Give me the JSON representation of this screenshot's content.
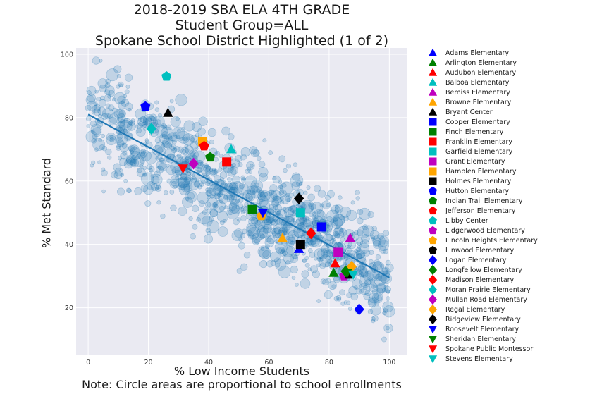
{
  "title_lines": [
    "2018-2019 SBA ELA 4TH GRADE",
    "Student Group=ALL",
    "Spokane School District Highlighted (1 of 2)"
  ],
  "xlabel": "% Low Income Students",
  "note": "Note: Circle areas are proportional to school enrollments",
  "ylabel": "% Met Standard",
  "chart_data": {
    "type": "scatter",
    "title": "2018-2019 SBA ELA 4TH GRADE / Student Group=ALL / Spokane School District Highlighted (1 of 2)",
    "xlabel": "% Low Income Students",
    "ylabel": "% Met Standard",
    "xlim": [
      -4,
      106
    ],
    "ylim": [
      5,
      102
    ],
    "xticks": [
      0,
      20,
      40,
      60,
      80,
      100
    ],
    "yticks": [
      20,
      40,
      60,
      80,
      100
    ],
    "grid": true,
    "legend_position": "right-outside",
    "trend_line": {
      "x": [
        0,
        100
      ],
      "y": [
        81,
        29.5
      ],
      "color": "#1f77b4"
    },
    "background_color": "#1f77b4",
    "highlighted_schools": [
      {
        "name": "Adams Elementary",
        "x": 70,
        "y": 38.5,
        "marker": "triangle-up",
        "color": "#0000ff"
      },
      {
        "name": "Arlington Elementary",
        "x": 81.5,
        "y": 31,
        "marker": "triangle-up",
        "color": "#008000"
      },
      {
        "name": "Audubon Elementary",
        "x": 82,
        "y": 34,
        "marker": "triangle-up",
        "color": "#ff0000"
      },
      {
        "name": "Balboa Elementary",
        "x": 47.5,
        "y": 70,
        "marker": "triangle-up",
        "color": "#00bfbf"
      },
      {
        "name": "Bemiss Elementary",
        "x": 87,
        "y": 42,
        "marker": "triangle-up",
        "color": "#bf00bf"
      },
      {
        "name": "Browne Elementary",
        "x": 64.5,
        "y": 42,
        "marker": "triangle-up",
        "color": "#ffa500"
      },
      {
        "name": "Bryant Center",
        "x": 26.5,
        "y": 81.5,
        "marker": "triangle-up",
        "color": "#000000"
      },
      {
        "name": "Cooper Elementary",
        "x": 77.5,
        "y": 45.5,
        "marker": "square",
        "color": "#0000ff"
      },
      {
        "name": "Finch Elementary",
        "x": 54.5,
        "y": 51,
        "marker": "square",
        "color": "#008000"
      },
      {
        "name": "Franklin Elementary",
        "x": 46,
        "y": 66,
        "marker": "square",
        "color": "#ff0000"
      },
      {
        "name": "Garfield Elementary",
        "x": 70.5,
        "y": 50,
        "marker": "square",
        "color": "#00bfbf"
      },
      {
        "name": "Grant Elementary",
        "x": 83,
        "y": 37.5,
        "marker": "square",
        "color": "#bf00bf"
      },
      {
        "name": "Hamblen Elementary",
        "x": 38,
        "y": 72.5,
        "marker": "square",
        "color": "#ffa500"
      },
      {
        "name": "Holmes Elementary",
        "x": 70.5,
        "y": 40,
        "marker": "square",
        "color": "#000000"
      },
      {
        "name": "Hutton Elementary",
        "x": 19,
        "y": 83.5,
        "marker": "pentagon",
        "color": "#0000ff"
      },
      {
        "name": "Indian Trail Elementary",
        "x": 40.5,
        "y": 67.5,
        "marker": "pentagon",
        "color": "#008000"
      },
      {
        "name": "Jefferson Elementary",
        "x": 38.5,
        "y": 71,
        "marker": "pentagon",
        "color": "#ff0000"
      },
      {
        "name": "Libby Center",
        "x": 26,
        "y": 93,
        "marker": "pentagon",
        "color": "#00bfbf"
      },
      {
        "name": "Lidgerwood Elementary",
        "x": 85,
        "y": 30,
        "marker": "pentagon",
        "color": "#bf00bf"
      },
      {
        "name": "Lincoln Heights Elementary",
        "x": 57.5,
        "y": 49,
        "marker": "pentagon",
        "color": "#ffa500"
      },
      {
        "name": "Linwood Elementary",
        "x": 86.5,
        "y": 30.5,
        "marker": "pentagon",
        "color": "#000000"
      },
      {
        "name": "Logan Elementary",
        "x": 90,
        "y": 19.5,
        "marker": "diamond",
        "color": "#0000ff"
      },
      {
        "name": "Longfellow Elementary",
        "x": 85.5,
        "y": 31.5,
        "marker": "diamond",
        "color": "#008000"
      },
      {
        "name": "Madison Elementary",
        "x": 74,
        "y": 43.5,
        "marker": "diamond",
        "color": "#ff0000"
      },
      {
        "name": "Moran Prairie Elementary",
        "x": 21,
        "y": 76.5,
        "marker": "diamond",
        "color": "#00bfbf"
      },
      {
        "name": "Mullan Road Elementary",
        "x": 35,
        "y": 65.5,
        "marker": "diamond",
        "color": "#bf00bf"
      },
      {
        "name": "Regal Elementary",
        "x": 87.5,
        "y": 33,
        "marker": "diamond",
        "color": "#ffa500"
      },
      {
        "name": "Ridgeview Elementary",
        "x": 70,
        "y": 54.5,
        "marker": "diamond",
        "color": "#000000"
      },
      {
        "name": "Roosevelt Elementary",
        "x": 58,
        "y": 50,
        "marker": "triangle-down",
        "color": "#0000ff"
      },
      {
        "name": "Sheridan Elementary",
        "x": 86,
        "y": 31,
        "marker": "triangle-down",
        "color": "#008000"
      },
      {
        "name": "Spokane Public Montessori",
        "x": 31.5,
        "y": 64,
        "marker": "triangle-down",
        "color": "#ff0000"
      },
      {
        "name": "Stevens Elementary",
        "x": 88,
        "y": 30.5,
        "marker": "triangle-down",
        "color": "#00bfbf"
      }
    ]
  }
}
